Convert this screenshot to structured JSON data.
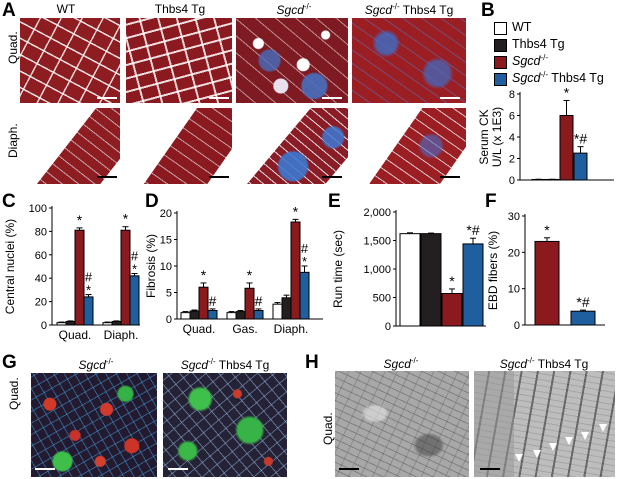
{
  "panels": {
    "A": "A",
    "B": "B",
    "C": "C",
    "D": "D",
    "E": "E",
    "F": "F",
    "G": "G",
    "H": "H"
  },
  "panelA": {
    "headers": [
      {
        "text": "WT",
        "italic": false
      },
      {
        "text": "Thbs4 Tg",
        "italic": false
      },
      {
        "text": "Sgcd-/-",
        "italic": true
      },
      {
        "text": "Sgcd-/- Thbs4 Tg",
        "italic": true
      }
    ],
    "header_plain": [
      "WT",
      "Thbs4 Tg"
    ],
    "header_sgcd": "Sgcd",
    "header_sup": "-/-",
    "header_tg": " Thbs4 Tg",
    "rows": [
      "Quad.",
      "Diaph."
    ]
  },
  "legend": {
    "items": [
      {
        "label": "WT",
        "color": "#ffffff"
      },
      {
        "label": "Thbs4 Tg",
        "color": "#231f20"
      },
      {
        "label": "Sgcd-/-",
        "color": "#8b1a1f"
      },
      {
        "label": "Sgcd-/- Thbs4 Tg",
        "color": "#1f5fa0"
      }
    ],
    "wt": "WT",
    "tg": "Thbs4 Tg",
    "sgcd": "Sgcd",
    "sup": "-/-",
    "sgcd_tg": " Thbs4 Tg"
  },
  "colors": {
    "wt": "#ffffff",
    "tg": "#231f20",
    "sgcd": "#8b1a1f",
    "sgcd_tg": "#1f5fa0"
  },
  "chart_data": [
    {
      "id": "B",
      "type": "bar",
      "ylabel": "Serum CK U/L (x 1E3)",
      "ylabel_lines": [
        "Serum CK",
        "U/L (x 1E3)"
      ],
      "ylim": [
        0,
        8
      ],
      "yticks": [
        "0",
        "2",
        "4",
        "6",
        "8"
      ],
      "groups": [
        ""
      ],
      "series": [
        {
          "name": "WT",
          "values": [
            0.05
          ],
          "err": [
            0.02
          ]
        },
        {
          "name": "Thbs4 Tg",
          "values": [
            0.05
          ],
          "err": [
            0.02
          ]
        },
        {
          "name": "Sgcd-/-",
          "values": [
            6.0
          ],
          "err": [
            1.4
          ]
        },
        {
          "name": "Sgcd-/- Thbs4 Tg",
          "values": [
            2.5
          ],
          "err": [
            0.6
          ]
        }
      ],
      "annotations": [
        {
          "series": 2,
          "group": 0,
          "text": "*"
        },
        {
          "series": 3,
          "group": 0,
          "text": "*#"
        }
      ]
    },
    {
      "id": "C",
      "type": "bar",
      "ylabel": "Central nuclei (%)",
      "ylim": [
        0,
        100
      ],
      "yticks": [
        "0",
        "20",
        "40",
        "60",
        "80",
        "100"
      ],
      "groups": [
        "Quad.",
        "Diaph."
      ],
      "series": [
        {
          "name": "WT",
          "values": [
            2,
            2
          ],
          "err": [
            0.5,
            0.5
          ]
        },
        {
          "name": "Thbs4 Tg",
          "values": [
            3,
            3
          ],
          "err": [
            0.5,
            0.5
          ]
        },
        {
          "name": "Sgcd-/-",
          "values": [
            81,
            81
          ],
          "err": [
            2,
            3
          ]
        },
        {
          "name": "Sgcd-/- Thbs4 Tg",
          "values": [
            24,
            42
          ],
          "err": [
            2,
            2
          ]
        }
      ],
      "annotations": [
        {
          "series": 2,
          "group": 0,
          "text": "*"
        },
        {
          "series": 3,
          "group": 0,
          "text": "#",
          "text2": "*"
        },
        {
          "series": 2,
          "group": 1,
          "text": "*"
        },
        {
          "series": 3,
          "group": 1,
          "text": "#",
          "text2": "*"
        }
      ]
    },
    {
      "id": "D",
      "type": "bar",
      "ylabel": "Fibrosis (%)",
      "ylim": [
        0,
        20
      ],
      "yticks": [
        "0",
        "5",
        "10",
        "15",
        "20"
      ],
      "groups": [
        "Quad.",
        "Gas.",
        "Diaph."
      ],
      "series": [
        {
          "name": "WT",
          "values": [
            1.2,
            1.2,
            2.8
          ],
          "err": [
            0.2,
            0.2,
            0.3
          ]
        },
        {
          "name": "Thbs4 Tg",
          "values": [
            1.5,
            1.4,
            4.0
          ],
          "err": [
            0.2,
            0.2,
            0.5
          ]
        },
        {
          "name": "Sgcd-/-",
          "values": [
            6.0,
            5.8,
            18.3
          ],
          "err": [
            0.8,
            1.0,
            0.5
          ]
        },
        {
          "name": "Sgcd-/- Thbs4 Tg",
          "values": [
            1.6,
            1.6,
            8.8
          ],
          "err": [
            0.3,
            0.3,
            1.2
          ]
        }
      ],
      "annotations": [
        {
          "series": 2,
          "group": 0,
          "text": "*"
        },
        {
          "series": 3,
          "group": 0,
          "text": "#"
        },
        {
          "series": 2,
          "group": 1,
          "text": "*"
        },
        {
          "series": 3,
          "group": 1,
          "text": "#"
        },
        {
          "series": 2,
          "group": 2,
          "text": "*"
        },
        {
          "series": 3,
          "group": 2,
          "text": "#",
          "text2": "*"
        }
      ]
    },
    {
      "id": "E",
      "type": "bar",
      "ylabel": "Run time (sec)",
      "ylim": [
        0,
        2000
      ],
      "yticks": [
        "0",
        "500",
        "1,000",
        "1,500",
        "2,000"
      ],
      "groups": [
        ""
      ],
      "series": [
        {
          "name": "WT",
          "values": [
            1620
          ],
          "err": [
            15
          ]
        },
        {
          "name": "Thbs4 Tg",
          "values": [
            1620
          ],
          "err": [
            10
          ]
        },
        {
          "name": "Sgcd-/-",
          "values": [
            570
          ],
          "err": [
            80
          ]
        },
        {
          "name": "Sgcd-/- Thbs4 Tg",
          "values": [
            1440
          ],
          "err": [
            100
          ]
        }
      ],
      "annotations": [
        {
          "series": 2,
          "group": 0,
          "text": "*"
        },
        {
          "series": 3,
          "group": 0,
          "text": "*#"
        }
      ]
    },
    {
      "id": "F",
      "type": "bar",
      "ylabel": "EBD fibers (%)",
      "ylim": [
        0,
        30
      ],
      "yticks": [
        "0",
        "10",
        "20",
        "30"
      ],
      "groups": [
        ""
      ],
      "series": [
        {
          "name": "Sgcd-/-",
          "values": [
            23
          ],
          "err": [
            1
          ]
        },
        {
          "name": "Sgcd-/- Thbs4 Tg",
          "values": [
            3.8
          ],
          "err": [
            0.3
          ]
        }
      ],
      "annotations": [
        {
          "series": 0,
          "group": 0,
          "text": "*"
        },
        {
          "series": 1,
          "group": 0,
          "text": "*#"
        }
      ]
    }
  ],
  "panelG": {
    "headers": [
      "Sgcd-/-",
      "Sgcd-/- Thbs4 Tg"
    ],
    "row": "Quad."
  },
  "panelH": {
    "headers": [
      "Sgcd-/-",
      "Sgcd-/- Thbs4 Tg"
    ],
    "row": "Quad."
  }
}
